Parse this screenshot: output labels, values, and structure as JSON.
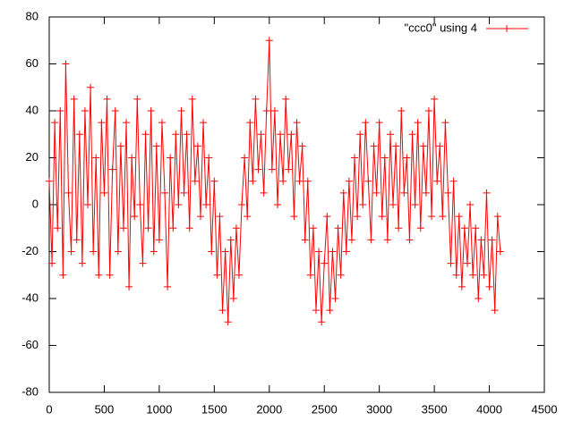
{
  "chart_data": {
    "type": "line",
    "x": [
      0,
      25,
      50,
      75,
      100,
      125,
      150,
      175,
      200,
      225,
      250,
      275,
      300,
      325,
      350,
      375,
      400,
      425,
      450,
      475,
      500,
      525,
      550,
      575,
      600,
      625,
      650,
      675,
      700,
      725,
      750,
      775,
      800,
      825,
      850,
      875,
      900,
      925,
      950,
      975,
      1000,
      1025,
      1050,
      1075,
      1100,
      1125,
      1150,
      1175,
      1200,
      1225,
      1250,
      1275,
      1300,
      1325,
      1350,
      1375,
      1400,
      1425,
      1450,
      1475,
      1500,
      1525,
      1550,
      1575,
      1600,
      1625,
      1650,
      1675,
      1700,
      1725,
      1750,
      1775,
      1800,
      1825,
      1850,
      1875,
      1900,
      1925,
      1950,
      1975,
      2000,
      2025,
      2050,
      2075,
      2100,
      2125,
      2150,
      2175,
      2200,
      2225,
      2250,
      2275,
      2300,
      2325,
      2350,
      2375,
      2400,
      2425,
      2450,
      2475,
      2500,
      2525,
      2550,
      2575,
      2600,
      2625,
      2650,
      2675,
      2700,
      2725,
      2750,
      2775,
      2800,
      2825,
      2850,
      2875,
      2900,
      2925,
      2950,
      2975,
      3000,
      3025,
      3050,
      3075,
      3100,
      3125,
      3150,
      3175,
      3200,
      3225,
      3250,
      3275,
      3300,
      3325,
      3350,
      3375,
      3400,
      3425,
      3450,
      3475,
      3500,
      3525,
      3550,
      3575,
      3600,
      3625,
      3650,
      3675,
      3700,
      3725,
      3750,
      3775,
      3800,
      3825,
      3850,
      3875,
      3900,
      3925,
      3950,
      3975,
      4000,
      4025,
      4050,
      4075,
      4100
    ],
    "series": [
      {
        "name": "\"ccc0\" using 4",
        "color": "#ff0000",
        "values": [
          10,
          -25,
          35,
          -10,
          40,
          -30,
          60,
          5,
          -20,
          45,
          -15,
          30,
          -25,
          40,
          0,
          50,
          -20,
          20,
          -30,
          35,
          5,
          45,
          -30,
          15,
          40,
          -20,
          25,
          -10,
          35,
          -35,
          20,
          -5,
          45,
          0,
          -25,
          30,
          -10,
          40,
          -20,
          25,
          -15,
          35,
          5,
          -35,
          20,
          -10,
          30,
          0,
          40,
          5,
          30,
          -10,
          45,
          10,
          25,
          -5,
          35,
          0,
          20,
          -20,
          10,
          -30,
          -5,
          -45,
          -20,
          -50,
          -15,
          -40,
          -10,
          -30,
          0,
          20,
          -5,
          35,
          10,
          45,
          15,
          30,
          5,
          40,
          70,
          15,
          40,
          0,
          30,
          10,
          45,
          15,
          30,
          -5,
          35,
          10,
          25,
          -15,
          10,
          -30,
          -10,
          -45,
          -20,
          -50,
          -25,
          -5,
          -45,
          -20,
          -40,
          -10,
          -30,
          5,
          -20,
          10,
          -15,
          20,
          -5,
          30,
          0,
          35,
          10,
          -15,
          25,
          5,
          35,
          -5,
          20,
          -15,
          30,
          0,
          25,
          -10,
          40,
          5,
          20,
          -15,
          30,
          0,
          35,
          -10,
          25,
          5,
          40,
          -5,
          45,
          10,
          25,
          -5,
          35,
          5,
          -25,
          10,
          -30,
          -5,
          -35,
          -10,
          -25,
          0,
          -30,
          -10,
          -40,
          -15,
          -30,
          5,
          -35,
          -15,
          -45,
          -5,
          -20
        ]
      }
    ],
    "xlim": [
      0,
      4500
    ],
    "xticks": [
      0,
      500,
      1000,
      1500,
      2000,
      2500,
      3000,
      3500,
      4000,
      4500
    ],
    "ylim": [
      -80,
      80
    ],
    "yticks": [
      -80,
      -60,
      -40,
      -20,
      0,
      20,
      40,
      60,
      80
    ],
    "legend": "top-right"
  }
}
